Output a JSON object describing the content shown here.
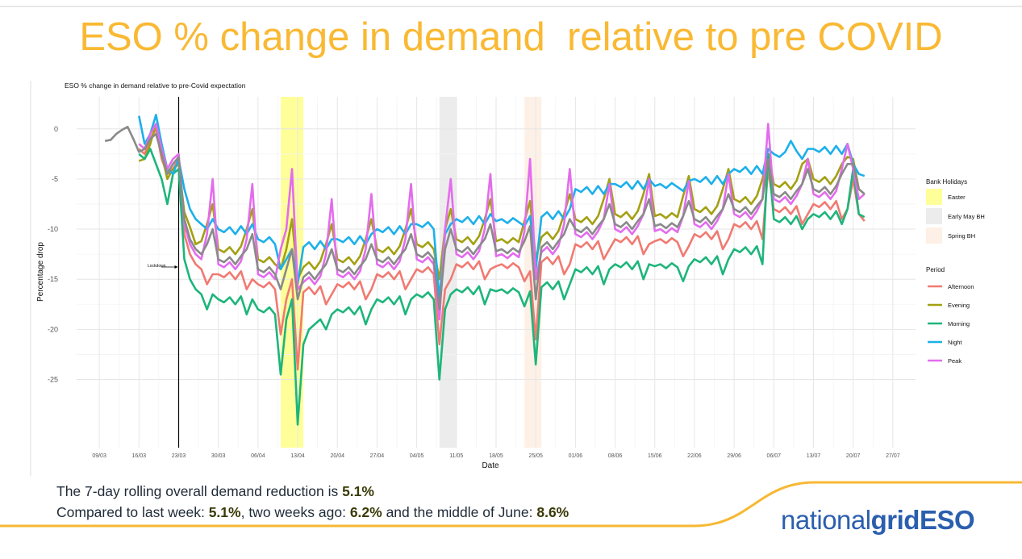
{
  "slide_title": "ESO % change in demand  relative to pre COVID",
  "chart_data": {
    "type": "line",
    "title": "ESO % change in demand relative to pre-Covid expectation",
    "xlabel": "Date",
    "ylabel": "Percentage drop",
    "categories": [
      "09/03",
      null,
      null,
      null,
      null,
      null,
      null,
      "16/03",
      null,
      null,
      null,
      null,
      null,
      null,
      "23/03",
      null,
      null,
      null,
      null,
      null,
      null,
      "30/03",
      null,
      null,
      null,
      null,
      null,
      null,
      "06/04",
      null,
      null,
      null,
      null,
      null,
      null,
      "13/04",
      null,
      null,
      null,
      null,
      null,
      null,
      "20/04",
      null,
      null,
      null,
      null,
      null,
      null,
      "27/04",
      null,
      null,
      null,
      null,
      null,
      null,
      "04/05",
      null,
      null,
      null,
      null,
      null,
      null,
      "11/05",
      null,
      null,
      null,
      null,
      null,
      null,
      "18/05",
      null,
      null,
      null,
      null,
      null,
      null,
      "25/05",
      null,
      null,
      null,
      null,
      null,
      null,
      "01/06",
      null,
      null,
      null,
      null,
      null,
      null,
      "08/06",
      null,
      null,
      null,
      null,
      null,
      null,
      "15/06",
      null,
      null,
      null,
      null,
      null,
      null,
      "22/06",
      null,
      null,
      null,
      null,
      null,
      null,
      "29/06",
      null,
      null,
      null,
      null,
      null,
      null,
      "06/07",
      null,
      null,
      null,
      null,
      null,
      null,
      "13/07",
      null,
      null,
      null,
      null,
      null,
      null,
      "20/07",
      null,
      null,
      null,
      null,
      null,
      null,
      "27/07"
    ],
    "series": [
      {
        "name": "Afternoon",
        "color": "#f07a72",
        "values": [
          null,
          null,
          null,
          null,
          null,
          null,
          null,
          -2,
          -2.5,
          -1,
          0,
          -3,
          -4.5,
          -4,
          -3,
          -10.5,
          -12.5,
          -13.5,
          -14,
          -15.5,
          -14.5,
          -14.5,
          -14.8,
          -14.3,
          -15,
          -14.2,
          -16,
          -15,
          -15.5,
          -15.8,
          -15.3,
          -16,
          -20.5,
          -17,
          -15,
          -24,
          -16.3,
          -15.8,
          -16.5,
          -15.7,
          -17.5,
          -16.5,
          -15.5,
          -15.8,
          -15.3,
          -16,
          -15.2,
          -17,
          -16,
          -14.5,
          -14.8,
          -14.3,
          -15,
          -14.2,
          -16,
          -15,
          -14,
          -14.3,
          -13.8,
          -14.5,
          -21.5,
          -16,
          -15,
          -13.5,
          -13.8,
          -13.3,
          -14,
          -13.2,
          -15,
          -14,
          -13.7,
          -13.5,
          -13.9,
          -13.4,
          -13.8,
          -15.2,
          -14.2,
          -21,
          -13.3,
          -12.8,
          -13.5,
          -12.7,
          -14.5,
          -13.5,
          -11.5,
          -11.8,
          -11.3,
          -12,
          -11.2,
          -13,
          -12,
          -11,
          -11.3,
          -10.8,
          -11.5,
          -10.7,
          -12.5,
          -11.5,
          -11.2,
          -11,
          -11.4,
          -10.9,
          -11.3,
          -12.7,
          -11.7,
          -10.5,
          -10.8,
          -10.3,
          -11,
          -10.2,
          -12,
          -11,
          -9.5,
          -9.8,
          -9.3,
          -10,
          -9.2,
          -11,
          -4,
          -8,
          -8.3,
          -7.8,
          -8.5,
          -7.7,
          -9.5,
          -8.5,
          -7.5,
          -7.8,
          -7.3,
          -8,
          -7.2,
          -9,
          -8,
          -5,
          -8.5,
          -9.2,
          null,
          null,
          null,
          null,
          null
        ]
      },
      {
        "name": "Evening",
        "color": "#a3a012",
        "values": [
          null,
          null,
          null,
          null,
          null,
          null,
          null,
          -3.2,
          -3,
          -1.5,
          0.5,
          -2.5,
          -5,
          -4,
          -3.5,
          -8.3,
          -9.8,
          -11.5,
          -11.2,
          -9.5,
          -7.5,
          -12,
          -12.3,
          -11.8,
          -12.5,
          -11.7,
          -10,
          -8,
          -13,
          -13.3,
          -12.8,
          -13.5,
          -14,
          -12,
          -9,
          -15,
          -13.8,
          -13.3,
          -14,
          -13.2,
          -11.5,
          -9.5,
          -13,
          -13.3,
          -12.8,
          -13.5,
          -12.7,
          -11,
          -9,
          -12,
          -12.3,
          -11.8,
          -12.5,
          -11.7,
          -10,
          -8,
          -11.5,
          -11.8,
          -11.3,
          -12,
          -15,
          -10,
          -8,
          -11,
          -11.3,
          -10.8,
          -11.5,
          -10.7,
          -9,
          -7,
          -11.2,
          -11,
          -11.4,
          -10.9,
          -11.3,
          -9.2,
          -7.2,
          -13,
          -10.8,
          -10.3,
          -11,
          -10.2,
          -8.5,
          -6.5,
          -9,
          -9.3,
          -8.8,
          -9.5,
          -8.7,
          -7,
          -5,
          -8.5,
          -8.8,
          -8.3,
          -9,
          -8.2,
          -6.5,
          -4.5,
          -8.7,
          -8.5,
          -8.9,
          -8.4,
          -8.8,
          -6.7,
          -4.7,
          -8,
          -8.3,
          -7.8,
          -8.5,
          -7.7,
          -6,
          -4,
          -7,
          -7.3,
          -6.8,
          -7.5,
          -6.7,
          -5,
          -2.5,
          -5.5,
          -5.8,
          -5.3,
          -6,
          -5.2,
          -3.5,
          -3,
          -5,
          -5.3,
          -4.8,
          -5.5,
          -4.7,
          -3.5,
          -2.8,
          -3,
          -6,
          -6.5,
          null,
          null,
          null,
          null,
          null
        ]
      },
      {
        "name": "Morning",
        "color": "#1db57b",
        "values": [
          null,
          null,
          null,
          null,
          null,
          null,
          null,
          -2.5,
          -3,
          -2,
          -3.5,
          -5,
          -7.5,
          -4.5,
          -4,
          -13,
          -15,
          -16,
          -16.5,
          -18,
          -16.5,
          -17,
          -17.3,
          -16.8,
          -17.5,
          -16.7,
          -18.5,
          -17,
          -18,
          -18.3,
          -17.8,
          -18.5,
          -24.5,
          -19,
          -17,
          -29.5,
          -21.5,
          -20,
          -19.5,
          -19,
          -20,
          -18.5,
          -18,
          -18.3,
          -17.8,
          -18.5,
          -17.7,
          -19.5,
          -18,
          -17,
          -17.3,
          -16.8,
          -17.5,
          -16.7,
          -18.5,
          -17,
          -16.5,
          -16.8,
          -16.3,
          -17,
          -25,
          -18,
          -16.5,
          -16,
          -16.3,
          -15.8,
          -16.5,
          -15.7,
          -17.5,
          -16,
          -16.2,
          -16,
          -16.4,
          -15.9,
          -16.3,
          -17.7,
          -16.2,
          -23.5,
          -15.8,
          -15.3,
          -16,
          -15.2,
          -17,
          -15.5,
          -14,
          -14.3,
          -13.8,
          -14.5,
          -13.7,
          -15.5,
          -14,
          -13.5,
          -13.8,
          -13.3,
          -14,
          -13.2,
          -15,
          -13.5,
          -13.7,
          -13.5,
          -13.9,
          -13.4,
          -13.8,
          -15.2,
          -13.7,
          -13,
          -13.3,
          -12.8,
          -13.5,
          -12.7,
          -14.5,
          -13,
          -12,
          -12.3,
          -11.8,
          -12.5,
          -11.7,
          -13.5,
          -2.5,
          -9,
          -9.3,
          -8.8,
          -9.5,
          -8.7,
          -10,
          -9,
          -8.5,
          -8.8,
          -8.3,
          -9,
          -8.2,
          -9.5,
          -8,
          -4,
          -8.5,
          -8.8,
          null,
          null,
          null,
          null,
          null
        ]
      },
      {
        "name": "Night",
        "color": "#1cb0ea",
        "values": [
          null,
          null,
          null,
          null,
          null,
          null,
          null,
          1.3,
          -1.5,
          -0.5,
          1.4,
          -1.5,
          -4,
          -4.5,
          -3,
          -6,
          -8,
          -9,
          -9.5,
          -10,
          -9,
          -10,
          -10.3,
          -9.8,
          -10.5,
          -9.7,
          -10.5,
          -9.5,
          -11,
          -11.3,
          -10.8,
          -11.5,
          -14,
          -13,
          -12,
          -15.5,
          -11.8,
          -11.3,
          -12,
          -11.2,
          -12,
          -11,
          -11,
          -11.3,
          -10.8,
          -11.5,
          -10.7,
          -11.5,
          -10.5,
          -10,
          -10.3,
          -9.8,
          -10.5,
          -9.7,
          -10.5,
          -9.5,
          -9.5,
          -9.8,
          -9.3,
          -10,
          -17,
          -10.5,
          -9.5,
          -9,
          -9.3,
          -8.8,
          -9.5,
          -8.7,
          -9.5,
          -8.5,
          -9.2,
          -9,
          -9.4,
          -8.9,
          -9.3,
          -9.7,
          -8.7,
          -14,
          -8.8,
          -8.3,
          -9,
          -8.2,
          -9,
          -8,
          -6,
          -6.3,
          -5.8,
          -6.5,
          -5.7,
          -6.5,
          -5.5,
          -5.5,
          -5.8,
          -5.3,
          -6,
          -5.2,
          -6,
          -5,
          -5.7,
          -5.5,
          -5.9,
          -5.4,
          -5.8,
          -6.2,
          -5.2,
          -5,
          -5.3,
          -4.8,
          -5.5,
          -4.7,
          -5.5,
          -4.5,
          -4,
          -4.3,
          -3.8,
          -4.5,
          -3.7,
          -4.5,
          -2,
          -2.5,
          -2.8,
          -2.3,
          -1.2,
          -2.2,
          -3,
          -2,
          -2,
          -2.3,
          -1.8,
          -2.5,
          -1.7,
          -2.5,
          -1.5,
          -3.5,
          -4.5,
          -4.7,
          null,
          null,
          null,
          null,
          null
        ]
      },
      {
        "name": "Peak",
        "color": "#e36cee",
        "values": [
          null,
          null,
          null,
          null,
          null,
          null,
          null,
          -1.5,
          -2,
          -0.5,
          0.5,
          -2,
          -4,
          -3,
          -2.5,
          -9.5,
          -11.5,
          -12.5,
          -13,
          -10.5,
          -5,
          -13.5,
          -13.8,
          -13.3,
          -14,
          -13.2,
          -11,
          -5.5,
          -14.5,
          -14.8,
          -14.3,
          -15,
          -12,
          -10,
          -4,
          -16,
          -15.3,
          -14.8,
          -15.5,
          -14.7,
          -12.5,
          -7,
          -14.5,
          -14.8,
          -14.3,
          -15,
          -14.2,
          -12,
          -6.5,
          -13.5,
          -13.8,
          -13.3,
          -14,
          -13.2,
          -11,
          -5.5,
          -13,
          -13.3,
          -12.8,
          -13.5,
          -19,
          -10,
          -5,
          -12.5,
          -12.8,
          -12.3,
          -13,
          -12.2,
          -10,
          -4.5,
          -12.7,
          -12.5,
          -12.9,
          -12.4,
          -12.8,
          -10.2,
          -3,
          -15,
          -12.3,
          -11.8,
          -12.5,
          -11.7,
          -9.5,
          -4,
          -10.5,
          -10.8,
          -10.3,
          -11,
          -10.2,
          -9,
          -5.5,
          -10,
          -10.3,
          -9.8,
          -10.5,
          -9.7,
          -8.5,
          -5,
          -10.2,
          -10,
          -10.4,
          -9.9,
          -10.3,
          -8.7,
          -5.2,
          -9.5,
          -9.8,
          -9.3,
          -10,
          -9.2,
          -8,
          -4.5,
          -8.5,
          -8.8,
          -8.3,
          -9,
          -8.2,
          -7,
          0.5,
          -7,
          -7.3,
          -6.8,
          -7.5,
          -6.7,
          -5.5,
          -3,
          -6.5,
          -6.8,
          -6.3,
          -7,
          -6.2,
          -4,
          -1.5,
          -4,
          -7,
          -6.5,
          null,
          null,
          null,
          null,
          null
        ]
      },
      {
        "color": "#8a8a8a",
        "values": [
          null,
          -1.2,
          -1.1,
          -0.5,
          -0.1,
          0.2,
          -1,
          -2.3,
          -2,
          -1,
          -0.5,
          -2.5,
          -4.5,
          -3.5,
          -2.8,
          -9,
          -11,
          -12,
          -12.5,
          -11.5,
          -10,
          -13,
          -13.3,
          -12.8,
          -13.5,
          -12.7,
          -12,
          -10.5,
          -14,
          -14.3,
          -13.8,
          -14.5,
          -16,
          -14,
          -12,
          -17,
          -14.8,
          -14.3,
          -15,
          -14.2,
          -13.5,
          -12,
          -14,
          -14.3,
          -13.8,
          -14.5,
          -13.7,
          -13,
          -11.5,
          -13,
          -13.3,
          -12.8,
          -13.5,
          -12.7,
          -12,
          -10.5,
          -12.5,
          -12.8,
          -12.3,
          -13,
          -18,
          -12,
          -10,
          -12,
          -12.3,
          -11.8,
          -12.5,
          -11.7,
          -11,
          -9.5,
          -12.2,
          -12,
          -12.4,
          -11.9,
          -12.3,
          -11.2,
          -9.7,
          -17,
          -11.8,
          -11.3,
          -12,
          -11.2,
          -10.5,
          -9,
          -10,
          -10.3,
          -9.8,
          -10.5,
          -9.7,
          -9,
          -7.5,
          -9.5,
          -9.8,
          -9.3,
          -10,
          -9.2,
          -8.5,
          -7,
          -9.7,
          -9.5,
          -9.9,
          -9.4,
          -9.8,
          -8.7,
          -7.2,
          -9,
          -9.3,
          -8.8,
          -9.5,
          -8.7,
          -8,
          -6.5,
          -8,
          -8.3,
          -7.8,
          -8.5,
          -7.7,
          -7,
          -3,
          -6.5,
          -6.8,
          -6.3,
          -7,
          -6.2,
          -5.5,
          -4,
          -6,
          -6.3,
          -5.8,
          -6.5,
          -5.7,
          -4.5,
          -3.5,
          -3.5,
          -6,
          -6.5,
          null,
          null,
          null,
          null,
          null
        ]
      }
    ],
    "ylim": [
      -31.8,
      3.2
    ],
    "yticks": [
      0,
      -5,
      -10,
      -15,
      -20,
      -25
    ],
    "grid": true,
    "legend_position": "right",
    "legend_title": "Period",
    "bank_holidays": {
      "title": "Bank Holidays",
      "items": [
        {
          "name": "Easter",
          "color": "#ffff99",
          "start": "10/04",
          "end": "13/04"
        },
        {
          "name": "Early May BH",
          "color": "#ececec",
          "start": "08/05",
          "end": "10/05"
        },
        {
          "name": "Spring BH",
          "color": "#fdf0e6",
          "start": "23/05",
          "end": "25/05"
        }
      ]
    },
    "annotation": {
      "text": "Lockdown",
      "date": "23/03"
    }
  },
  "footer": {
    "lines": [
      [
        {
          "text": "The 7-day rolling overall demand reduction is "
        },
        {
          "text": "5.1%",
          "bold": true
        }
      ],
      [
        {
          "text": "Compared to last week: "
        },
        {
          "text": "5.1%",
          "bold": true
        },
        {
          "text": ", two weeks ago: "
        },
        {
          "text": "6.2%",
          "bold": true
        },
        {
          "text": " and the middle of June: "
        },
        {
          "text": "8.6%",
          "bold": true
        }
      ]
    ]
  },
  "logo": [
    {
      "text": "national"
    },
    {
      "text": "grid",
      "bold": true
    },
    {
      "text": "ESO",
      "bold": true
    }
  ]
}
